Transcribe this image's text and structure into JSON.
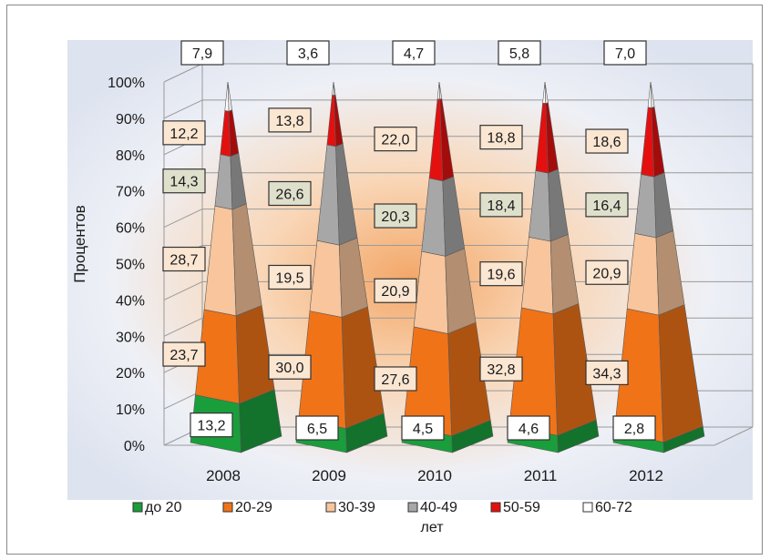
{
  "chart_data": {
    "type": "bar",
    "bar_shape": "3d-pyramid",
    "stacked": "percent",
    "categories": [
      "2008",
      "2009",
      "2010",
      "2011",
      "2012"
    ],
    "series": [
      {
        "name": "до 20",
        "color": "#1a9e3c",
        "values": [
          13.2,
          6.5,
          4.5,
          4.6,
          2.8
        ]
      },
      {
        "name": "20-29",
        "color": "#f07318",
        "values": [
          23.7,
          30.0,
          27.6,
          32.8,
          34.3
        ]
      },
      {
        "name": "30-39",
        "color": "#f8c59c",
        "values": [
          28.7,
          19.5,
          20.9,
          19.6,
          20.9
        ]
      },
      {
        "name": "40-49",
        "color": "#a7a7a7",
        "values": [
          14.3,
          26.6,
          20.3,
          18.4,
          16.4
        ]
      },
      {
        "name": "50-59",
        "color": "#e41010",
        "values": [
          12.2,
          13.8,
          22.0,
          18.8,
          18.6
        ]
      },
      {
        "name": "60-72",
        "color": "#ffffff",
        "values": [
          7.9,
          3.6,
          4.7,
          5.8,
          7.0
        ]
      }
    ],
    "ylabel": "Процентов",
    "y_ticks": [
      "0%",
      "10%",
      "20%",
      "30%",
      "40%",
      "50%",
      "60%",
      "70%",
      "80%",
      "90%",
      "100%"
    ],
    "ylim": [
      0,
      100
    ],
    "grid": true,
    "legend_position": "bottom",
    "legend_suffix": "лет"
  }
}
